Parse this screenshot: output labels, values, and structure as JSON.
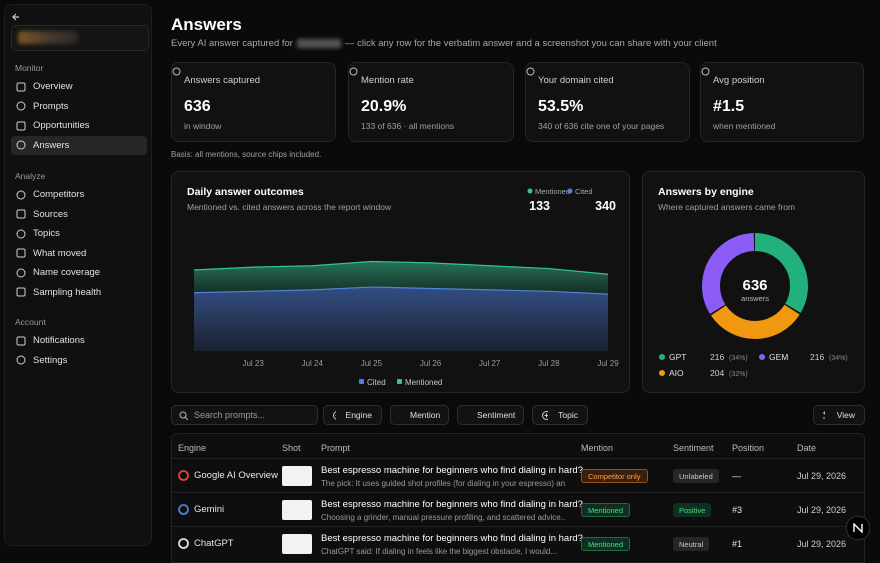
{
  "sidebar": {
    "active": "Answers",
    "sections": [
      {
        "label": "Monitor",
        "items": [
          "Overview",
          "Prompts",
          "Opportunities",
          "Answers"
        ]
      },
      {
        "label": "Analyze",
        "items": [
          "Competitors",
          "Sources",
          "Topics",
          "What moved",
          "Name coverage",
          "Sampling health"
        ]
      },
      {
        "label": "Account",
        "items": [
          "Notifications",
          "Settings"
        ]
      }
    ]
  },
  "header": {
    "title": "Answers",
    "subtitle_before": "Every AI answer captured for",
    "subtitle_after": "— click any row for the verbatim answer and a screenshot you can share with your client"
  },
  "kpis": [
    {
      "label": "Answers captured",
      "value": "636",
      "sub": "in window"
    },
    {
      "label": "Mention rate",
      "value": "20.9%",
      "sub": "133 of 636 · all mentions"
    },
    {
      "label": "Your domain cited",
      "value": "53.5%",
      "sub": "340 of 636 cite one of your pages"
    },
    {
      "label": "Avg position",
      "value": "#1.5",
      "sub": "when mentioned"
    }
  ],
  "basis_note": "Basis: all mentions, source chips included.",
  "chart_data": [
    {
      "type": "area",
      "stacked": true,
      "title": "Daily answer outcomes",
      "subtitle": "Mentioned vs. cited answers across the report window",
      "categories": [
        null,
        "Jul 23",
        "Jul 24",
        "Jul 25",
        "Jul 26",
        "Jul 27",
        "Jul 28",
        "Jul 29"
      ],
      "ylim": [
        0,
        95
      ],
      "series": [
        {
          "name": "Cited",
          "color": "#4f7fe0",
          "total": 340,
          "values": [
            41,
            42,
            43,
            45,
            44,
            43,
            42,
            40
          ]
        },
        {
          "name": "Mentioned",
          "color": "#34c38f",
          "total": 133,
          "values": [
            16,
            17,
            17,
            18,
            18,
            17,
            16,
            14
          ]
        }
      ]
    },
    {
      "type": "pie",
      "title": "Answers by engine",
      "subtitle": "Where captured answers came from",
      "center_value": 636,
      "center_label": "answers",
      "categories": [
        "GPT",
        "AIO",
        "GEM"
      ],
      "values": [
        216,
        204,
        216
      ],
      "percent_labels": [
        "(34%)",
        "(32%)",
        "(34%)"
      ],
      "colors": [
        "#22b07d",
        "#f0980f",
        "#8b5cf6"
      ]
    }
  ],
  "toolbar": {
    "search_placeholder": "Search prompts...",
    "filters": [
      "Engine",
      "Mention",
      "Sentiment",
      "Topic"
    ],
    "view_button": "View"
  },
  "table": {
    "columns": [
      "Engine",
      "Shot",
      "Prompt",
      "Mention",
      "Sentiment",
      "Position",
      "Date"
    ],
    "rows": [
      {
        "engine": "Google AI Overview",
        "prompt": "Best espresso machine for beginners who find dialing in hard?",
        "snippet": "The pick: It uses guided shot profiles (for dialing in your espresso) an...",
        "mention": "Competitor only",
        "sentiment": "Unlabeled",
        "position": "—",
        "date": "Jul 29, 2026"
      },
      {
        "engine": "Gemini",
        "prompt": "Best espresso machine for beginners who find dialing in hard?",
        "snippet": "Choosing a grinder, manual pressure profiling, and scattered advice...",
        "mention": "Mentioned",
        "sentiment": "Positive",
        "position": "#3",
        "date": "Jul 29, 2026"
      },
      {
        "engine": "ChatGPT",
        "prompt": "Best espresso machine for beginners who find dialing in hard?",
        "snippet": "ChatGPT said: If dialing in feels like the biggest obstacle, I would...",
        "mention": "Mentioned",
        "sentiment": "Neutral",
        "position": "#1",
        "date": "Jul 29, 2026"
      }
    ]
  }
}
